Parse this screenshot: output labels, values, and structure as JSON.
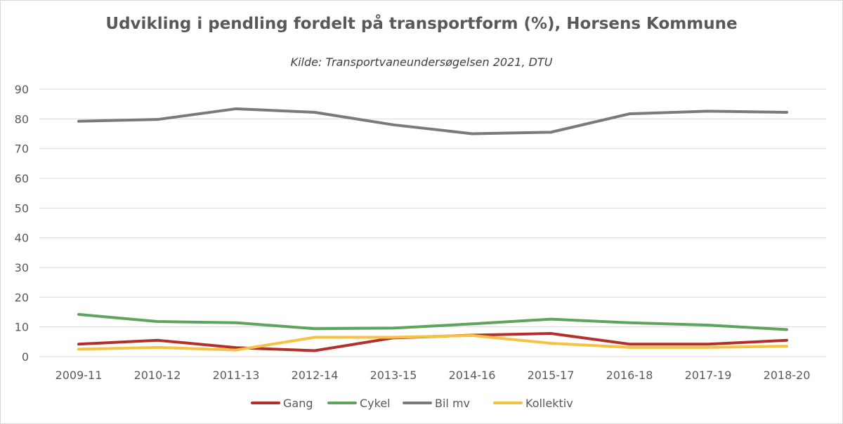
{
  "chart_data": {
    "type": "line",
    "title": "Udvikling i pendling fordelt på transportform (%), Horsens Kommune",
    "subtitle": "Kilde: Transportvaneundersøgelsen 2021, DTU",
    "categories": [
      "2009-11",
      "2010-12",
      "2011-13",
      "2012-14",
      "2013-15",
      "2014-16",
      "2015-17",
      "2016-18",
      "2017-19",
      "2018-20"
    ],
    "ylim": [
      0,
      90
    ],
    "yticks": [
      0,
      10,
      20,
      30,
      40,
      50,
      60,
      70,
      80,
      90
    ],
    "grid": true,
    "legend": "bottom",
    "series": [
      {
        "name": "Gang",
        "color": "#b3302a",
        "values": [
          4.2,
          5.5,
          3.0,
          2.0,
          6.3,
          7.2,
          7.8,
          4.2,
          4.2,
          5.5
        ]
      },
      {
        "name": "Cykel",
        "color": "#5ea45e",
        "values": [
          14.2,
          11.8,
          11.4,
          9.4,
          9.6,
          11.0,
          12.6,
          11.4,
          10.6,
          9.1
        ]
      },
      {
        "name": "Bil mv",
        "color": "#7a7a7a",
        "values": [
          79.2,
          79.8,
          83.4,
          82.2,
          78.0,
          75.0,
          75.5,
          81.7,
          82.6,
          82.2
        ]
      },
      {
        "name": "Kollektiv",
        "color": "#f5c242",
        "values": [
          2.5,
          3.1,
          2.2,
          6.5,
          6.5,
          7.1,
          4.5,
          3.1,
          3.1,
          3.5
        ]
      }
    ]
  }
}
